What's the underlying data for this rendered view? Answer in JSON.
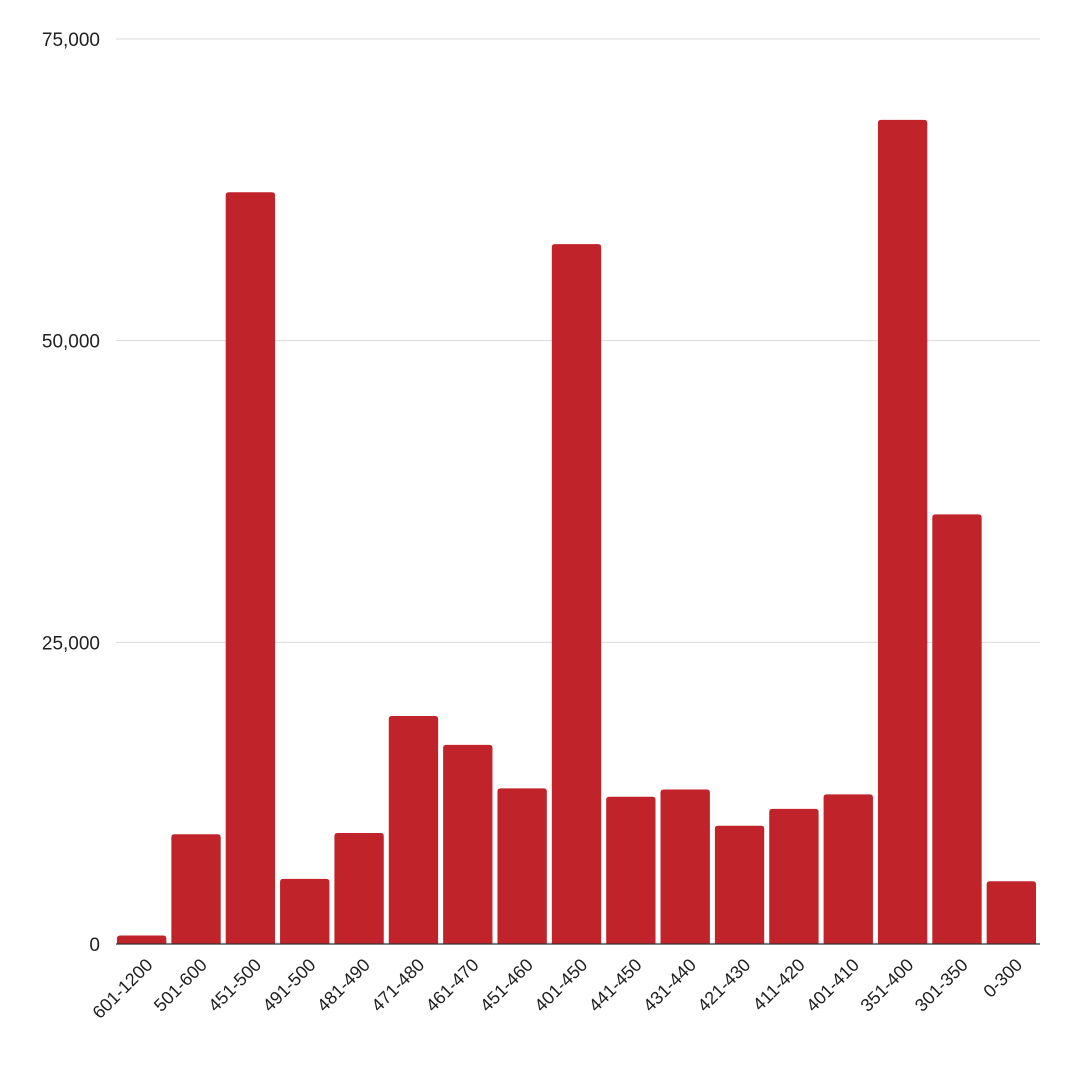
{
  "colors": {
    "bar": "#c0232a",
    "grid": "#d9d9d9",
    "text": "#1f1f1f"
  },
  "chart_data": {
    "type": "bar",
    "title": "",
    "xlabel": "",
    "ylabel": "",
    "ylim": [
      0,
      75000
    ],
    "yticks": [
      0,
      25000,
      50000,
      75000
    ],
    "ytick_labels": [
      "0",
      "25,000",
      "50,000",
      "75,000"
    ],
    "grid": true,
    "legend": "none",
    "categories": [
      "601-1200",
      "501-600",
      "451-500",
      "491-500",
      "481-490",
      "471-480",
      "461-470",
      "451-460",
      "401-450",
      "441-450",
      "431-440",
      "421-430",
      "411-420",
      "401-410",
      "351-400",
      "301-350",
      "0-300"
    ],
    "values": [
      700,
      9100,
      62300,
      5400,
      9200,
      18900,
      16500,
      12900,
      58000,
      12200,
      12800,
      9800,
      11200,
      12400,
      68300,
      35600,
      5200
    ]
  }
}
